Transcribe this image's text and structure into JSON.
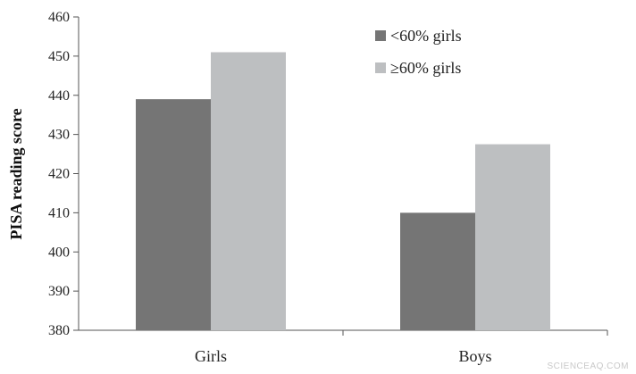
{
  "chart_data": {
    "type": "bar",
    "categories": [
      "Girls",
      "Boys"
    ],
    "series": [
      {
        "name": "<60% girls",
        "values": [
          439,
          410
        ],
        "color": "#757575"
      },
      {
        "name": "≥60% girls",
        "values": [
          451,
          427.5
        ],
        "color": "#bdbfc1"
      }
    ],
    "ylabel": "PISA reading score",
    "xlabel": "",
    "ylim": [
      380,
      460
    ],
    "yticks": [
      380,
      390,
      400,
      410,
      420,
      430,
      440,
      450,
      460
    ],
    "grid": false,
    "legend_position": "top-right"
  },
  "watermark": "SCIENCEAQ.COM"
}
